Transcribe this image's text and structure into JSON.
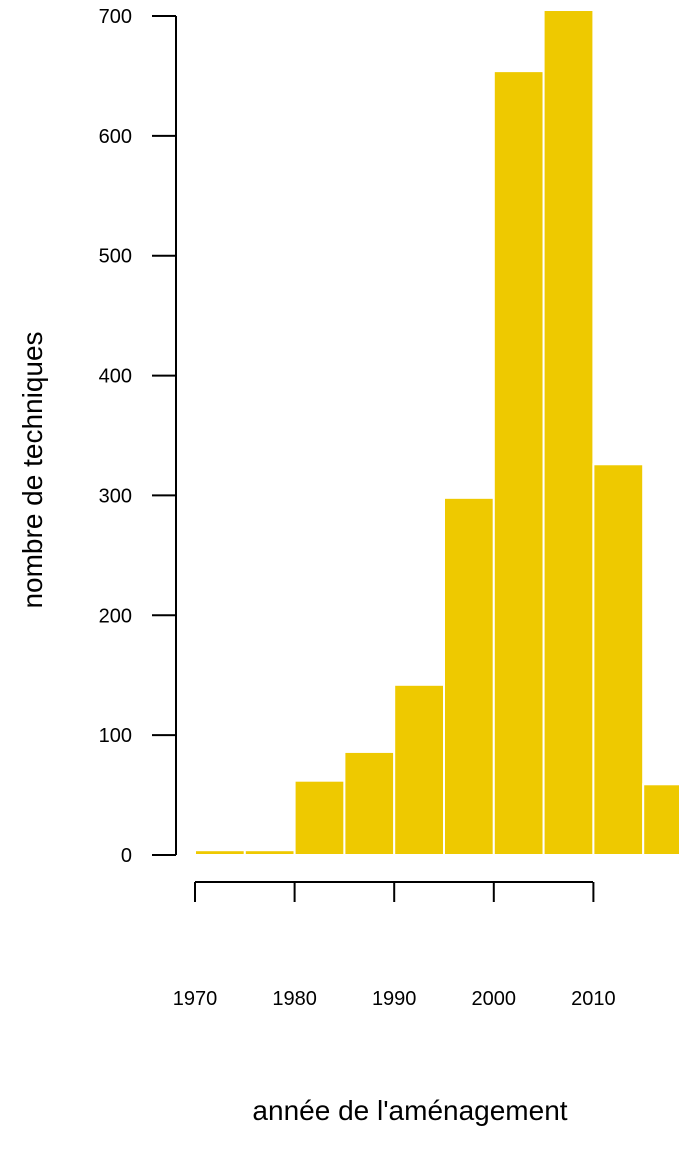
{
  "chart_data": {
    "type": "bar",
    "bins": [
      {
        "start": 1970,
        "end": 1975,
        "value": 4
      },
      {
        "start": 1975,
        "end": 1980,
        "value": 4
      },
      {
        "start": 1980,
        "end": 1985,
        "value": 62
      },
      {
        "start": 1985,
        "end": 1990,
        "value": 86
      },
      {
        "start": 1990,
        "end": 1995,
        "value": 142
      },
      {
        "start": 1995,
        "end": 2000,
        "value": 298
      },
      {
        "start": 2000,
        "end": 2005,
        "value": 654
      },
      {
        "start": 2005,
        "end": 2010,
        "value": 705
      },
      {
        "start": 2010,
        "end": 2015,
        "value": 326
      },
      {
        "start": 2015,
        "end": 2020,
        "value": 59
      }
    ],
    "xlabel": "année de l'aménagement",
    "ylabel": "nombre de techniques",
    "xlim": [
      1970,
      2020
    ],
    "ylim": [
      0,
      700
    ],
    "x_ticks": [
      "1970",
      "1980",
      "1990",
      "2000",
      "2010"
    ],
    "y_ticks": [
      "0",
      "100",
      "200",
      "300",
      "400",
      "500",
      "600",
      "700"
    ],
    "bar_color": "#EEC900",
    "grid": false
  }
}
